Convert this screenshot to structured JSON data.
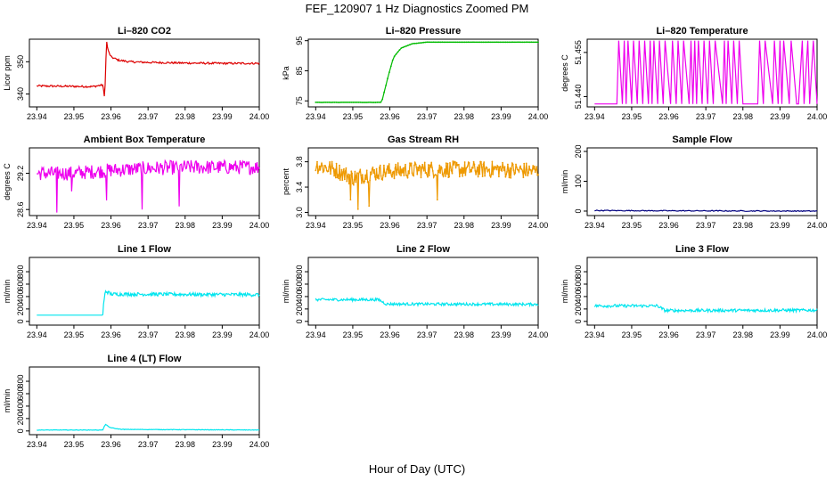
{
  "figure": {
    "title": "FEF_120907  1 Hz Diagnostics Zoomed PM",
    "xlabel": "Hour of Day (UTC)"
  },
  "colors": {
    "red": "#dd0000",
    "green": "#00bb00",
    "magenta": "#ee00ee",
    "orange": "#ee9900",
    "navy": "#000080",
    "cyan": "#00e5ee"
  },
  "chart_data": [
    {
      "type": "line",
      "title": "Li–820 CO2",
      "ylabel": "Licor ppm",
      "color": "red",
      "xlim": [
        23.938,
        24.0
      ],
      "xticks": [
        "23.94",
        "23.95",
        "23.96",
        "23.97",
        "23.98",
        "23.99",
        "24.00"
      ],
      "ylim": [
        336,
        357
      ],
      "yticks": [
        "340",
        "350"
      ],
      "series": [
        {
          "name": "CO2",
          "x": [
            23.94,
            23.955,
            23.9578,
            23.9583,
            23.9588,
            23.9592,
            23.96,
            23.962,
            23.965,
            23.97,
            23.98,
            23.99,
            24.0
          ],
          "values": [
            342.5,
            342.3,
            342.8,
            338.5,
            356.5,
            353.5,
            351.5,
            350.5,
            350.0,
            349.8,
            349.6,
            349.5,
            349.5
          ]
        }
      ],
      "noise": 0.3,
      "samples": 280
    },
    {
      "type": "line",
      "title": "Li–820 Pressure",
      "ylabel": "kPa",
      "color": "green",
      "xlim": [
        23.938,
        24.0
      ],
      "xticks": [
        "23.94",
        "23.95",
        "23.96",
        "23.97",
        "23.98",
        "23.99",
        "24.00"
      ],
      "ylim": [
        73,
        95.5
      ],
      "yticks": [
        "75",
        "85",
        "95"
      ],
      "series": [
        {
          "name": "Pressure",
          "x": [
            23.94,
            23.9578,
            23.9595,
            23.961,
            23.963,
            23.966,
            23.97,
            24.0
          ],
          "values": [
            74.5,
            74.5,
            83.0,
            89.5,
            92.5,
            94.0,
            94.5,
            94.5
          ]
        }
      ],
      "noise": 0.02,
      "samples": 130,
      "markers": true
    },
    {
      "type": "line",
      "title": "Li–820 Temperature",
      "ylabel": "degrees C",
      "color": "magenta",
      "xlim": [
        23.938,
        24.0
      ],
      "xticks": [
        "23.94",
        "23.95",
        "23.96",
        "23.97",
        "23.98",
        "23.99",
        "24.00"
      ],
      "ylim": [
        51.4365,
        51.4595
      ],
      "yticks": [
        "51.440",
        "51.455"
      ],
      "binary_levels": [
        51.4375,
        51.459
      ],
      "series": [
        {
          "name": "Temperature",
          "x": [
            23.94,
            23.9405,
            23.941,
            23.9425,
            23.943,
            23.946,
            23.9465,
            23.9475,
            23.948,
            23.9485,
            23.949,
            23.95,
            23.9505,
            23.9515,
            23.952,
            23.953,
            23.9535,
            23.9545,
            23.955,
            23.9555,
            23.956,
            23.957,
            23.9575,
            23.9585,
            23.959,
            23.9605,
            23.961,
            23.962,
            23.9625,
            23.9635,
            23.964,
            23.9655,
            23.966,
            23.9665,
            23.967,
            23.9675,
            23.968,
            23.969,
            23.9695,
            23.9705,
            23.971,
            23.972,
            23.9725,
            23.9745,
            23.975,
            23.9755,
            23.976,
            23.977,
            23.9775,
            23.9785,
            23.979,
            23.98,
            23.9805,
            23.9825,
            23.983,
            23.984,
            23.9845,
            23.9855,
            23.986,
            23.988,
            23.9885,
            23.9895,
            23.99,
            23.9905,
            23.991,
            23.9925,
            23.993,
            23.9945,
            23.995,
            23.996,
            23.9965,
            23.9975,
            23.998,
            23.999,
            24.0
          ],
          "values": [
            51.4375,
            51.4375,
            51.4375,
            51.4375,
            51.4375,
            51.4375,
            51.459,
            51.4375,
            51.459,
            51.4375,
            51.459,
            51.4375,
            51.459,
            51.4375,
            51.459,
            51.4375,
            51.459,
            51.4375,
            51.459,
            51.4375,
            51.459,
            51.4375,
            51.459,
            51.4375,
            51.459,
            51.4375,
            51.459,
            51.4375,
            51.459,
            51.4375,
            51.459,
            51.4375,
            51.459,
            51.4375,
            51.459,
            51.4375,
            51.459,
            51.4375,
            51.459,
            51.4375,
            51.459,
            51.4375,
            51.459,
            51.4375,
            51.459,
            51.4375,
            51.459,
            51.4375,
            51.459,
            51.4375,
            51.459,
            51.4375,
            51.4375,
            51.4375,
            51.4375,
            51.4375,
            51.459,
            51.4375,
            51.459,
            51.4375,
            51.459,
            51.4375,
            51.459,
            51.4375,
            51.459,
            51.4375,
            51.459,
            51.4375,
            51.4375,
            51.459,
            51.4375,
            51.459,
            51.4375,
            51.459,
            51.4375
          ]
        }
      ]
    },
    {
      "type": "line",
      "title": "Ambient Box Temperature",
      "ylabel": "degrees C",
      "color": "magenta",
      "xlim": [
        23.938,
        24.0
      ],
      "xticks": [
        "23.94",
        "23.95",
        "23.96",
        "23.97",
        "23.98",
        "23.99",
        "24.00"
      ],
      "ylim": [
        28.5,
        29.62
      ],
      "yticks": [
        "28.6",
        "29.2"
      ],
      "series": [
        {
          "name": "Ambient",
          "x": [
            23.94,
            23.95,
            23.96,
            23.97,
            23.98,
            23.99,
            24.0
          ],
          "values": [
            29.2,
            29.2,
            29.25,
            29.28,
            29.3,
            29.3,
            29.3
          ]
        }
      ],
      "noise": 0.12,
      "samples": 300,
      "dips": [
        [
          23.9455,
          28.55
        ],
        [
          23.9495,
          28.9
        ],
        [
          23.9588,
          28.75
        ],
        [
          23.9685,
          28.6
        ],
        [
          23.9785,
          28.65
        ]
      ]
    },
    {
      "type": "line",
      "title": "Gas Stream RH",
      "ylabel": "percent",
      "color": "orange",
      "xlim": [
        23.938,
        24.0
      ],
      "xticks": [
        "23.94",
        "23.95",
        "23.96",
        "23.97",
        "23.98",
        "23.99",
        "24.00"
      ],
      "ylim": [
        2.95,
        4.02
      ],
      "yticks": [
        "3.0",
        "3.4",
        "3.8"
      ],
      "series": [
        {
          "name": "RH",
          "x": [
            23.94,
            23.945,
            23.95,
            23.955,
            23.96,
            23.97,
            23.98,
            23.99,
            24.0
          ],
          "values": [
            3.75,
            3.68,
            3.55,
            3.62,
            3.65,
            3.68,
            3.68,
            3.68,
            3.65
          ]
        }
      ],
      "noise": 0.13,
      "samples": 300,
      "markers": true,
      "dips": [
        [
          23.9515,
          3.05
        ],
        [
          23.9545,
          3.1
        ],
        [
          23.9495,
          3.2
        ],
        [
          23.9728,
          3.2
        ]
      ]
    },
    {
      "type": "line",
      "title": "Sample Flow",
      "ylabel": "ml/min",
      "color": "navy",
      "xlim": [
        23.938,
        24.0
      ],
      "xticks": [
        "23.94",
        "23.95",
        "23.96",
        "23.97",
        "23.98",
        "23.99",
        "24.00"
      ],
      "ylim": [
        -15,
        212
      ],
      "yticks": [
        "0",
        "100",
        "200"
      ],
      "series": [
        {
          "name": "Sample Flow",
          "x": [
            23.94,
            23.96,
            24.0
          ],
          "values": [
            2,
            1,
            0
          ]
        }
      ],
      "noise": 1.5,
      "samples": 200
    },
    {
      "type": "line",
      "title": "Line 1 Flow",
      "ylabel": "ml/min",
      "color": "cyan",
      "xlim": [
        23.938,
        24.0
      ],
      "xticks": [
        "23.94",
        "23.95",
        "23.96",
        "23.97",
        "23.98",
        "23.99",
        "24.00"
      ],
      "ylim": [
        -60,
        1030
      ],
      "yticks": [
        "0",
        "200",
        "400",
        "600",
        "800"
      ],
      "series": [
        {
          "name": "Line 1",
          "x": [
            23.94,
            23.9578,
            23.958,
            23.9585,
            23.96,
            24.0
          ],
          "values": [
            100,
            100,
            280,
            490,
            440,
            430
          ]
        }
      ],
      "noise": 28,
      "noise_after": 23.9582,
      "samples": 320
    },
    {
      "type": "line",
      "title": "Line 2 Flow",
      "ylabel": "ml/min",
      "color": "cyan",
      "xlim": [
        23.938,
        24.0
      ],
      "xticks": [
        "23.94",
        "23.95",
        "23.96",
        "23.97",
        "23.98",
        "23.99",
        "24.00"
      ],
      "ylim": [
        -60,
        1030
      ],
      "yticks": [
        "0",
        "200",
        "400",
        "600",
        "800"
      ],
      "series": [
        {
          "name": "Line 2",
          "x": [
            23.94,
            23.957,
            23.959,
            24.0
          ],
          "values": [
            350,
            350,
            280,
            275
          ]
        }
      ],
      "noise": 22,
      "samples": 320
    },
    {
      "type": "line",
      "title": "Line 3 Flow",
      "ylabel": "ml/min",
      "color": "cyan",
      "xlim": [
        23.938,
        24.0
      ],
      "xticks": [
        "23.94",
        "23.95",
        "23.96",
        "23.97",
        "23.98",
        "23.99",
        "24.00"
      ],
      "ylim": [
        -60,
        1030
      ],
      "yticks": [
        "0",
        "200",
        "400",
        "600",
        "800"
      ],
      "series": [
        {
          "name": "Line 3",
          "x": [
            23.94,
            23.957,
            23.959,
            24.0
          ],
          "values": [
            250,
            250,
            175,
            180
          ]
        }
      ],
      "noise": 24,
      "samples": 320
    },
    {
      "type": "line",
      "title": "Line 4 (LT) Flow",
      "ylabel": "ml/min",
      "color": "cyan",
      "xlim": [
        23.938,
        24.0
      ],
      "xticks": [
        "23.94",
        "23.95",
        "23.96",
        "23.97",
        "23.98",
        "23.99",
        "24.00"
      ],
      "ylim": [
        -60,
        1030
      ],
      "yticks": [
        "0",
        "200",
        "400",
        "600",
        "800"
      ],
      "series": [
        {
          "name": "Line 4",
          "x": [
            23.94,
            23.9578,
            23.9585,
            23.9595,
            23.961,
            23.963,
            24.0
          ],
          "values": [
            15,
            15,
            110,
            60,
            40,
            25,
            15
          ]
        }
      ],
      "noise": 4,
      "samples": 320
    }
  ]
}
